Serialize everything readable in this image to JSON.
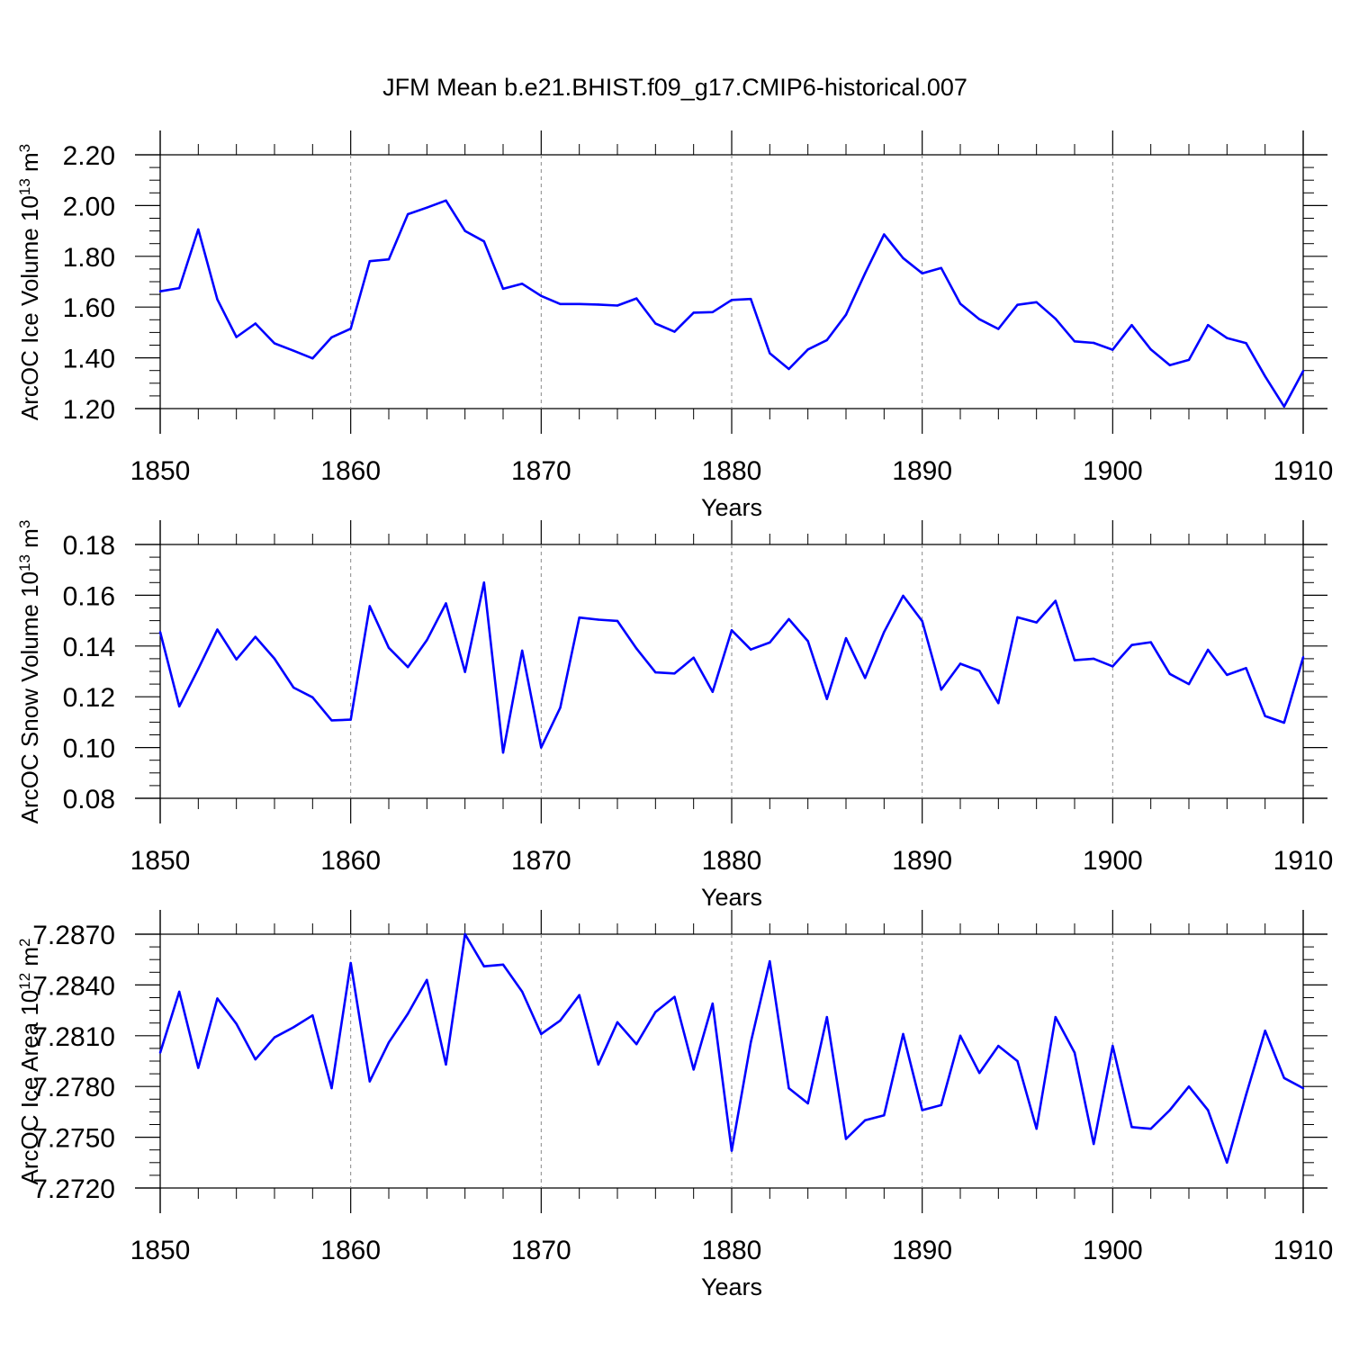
{
  "title": "JFM Mean b.e21.BHIST.f09_g17.CMIP6-historical.007",
  "chart_data": [
    {
      "type": "line",
      "name": "ice-volume",
      "ylabel": "ArcOC Ice Volume 10",
      "ylabel_exp": "13",
      "ylabel_unit": " m",
      "ylabel_unit_exp": "3",
      "xlabel": "Years",
      "xlim": [
        1850,
        1910
      ],
      "ylim": [
        1.2,
        2.2
      ],
      "xticks": [
        1850,
        1860,
        1870,
        1880,
        1890,
        1900,
        1910
      ],
      "xtick_labels": [
        "1850",
        "1860",
        "1870",
        "1880",
        "1890",
        "1900",
        "1910"
      ],
      "yticks": [
        1.2,
        1.4,
        1.6,
        1.8,
        2.0,
        2.2
      ],
      "ytick_labels": [
        "1.20",
        "1.40",
        "1.60",
        "1.80",
        "2.00",
        "2.20"
      ],
      "y_minor_step": 0.05,
      "line_color": "#0000ff",
      "x": [
        1850,
        1851,
        1852,
        1853,
        1854,
        1855,
        1856,
        1857,
        1858,
        1859,
        1860,
        1861,
        1862,
        1863,
        1864,
        1865,
        1866,
        1867,
        1868,
        1869,
        1870,
        1871,
        1872,
        1873,
        1874,
        1875,
        1876,
        1877,
        1878,
        1879,
        1880,
        1881,
        1882,
        1883,
        1884,
        1885,
        1886,
        1887,
        1888,
        1889,
        1890,
        1891,
        1892,
        1893,
        1894,
        1895,
        1896,
        1897,
        1898,
        1899,
        1900,
        1901,
        1902,
        1903,
        1904,
        1905,
        1906,
        1907,
        1908,
        1909,
        1910
      ],
      "values": [
        1.662,
        1.675,
        1.906,
        1.63,
        1.482,
        1.535,
        1.457,
        1.428,
        1.398,
        1.481,
        1.515,
        1.781,
        1.788,
        1.966,
        1.992,
        2.02,
        1.9,
        1.859,
        1.672,
        1.692,
        1.644,
        1.612,
        1.612,
        1.61,
        1.606,
        1.634,
        1.535,
        1.503,
        1.578,
        1.58,
        1.628,
        1.632,
        1.418,
        1.356,
        1.433,
        1.47,
        1.57,
        1.733,
        1.886,
        1.793,
        1.733,
        1.754,
        1.613,
        1.552,
        1.514,
        1.609,
        1.619,
        1.554,
        1.465,
        1.459,
        1.432,
        1.529,
        1.433,
        1.371,
        1.392,
        1.529,
        1.478,
        1.458,
        1.327,
        1.208,
        1.348
      ]
    },
    {
      "type": "line",
      "name": "snow-volume",
      "ylabel": "ArcOC Snow Volume 10",
      "ylabel_exp": "13",
      "ylabel_unit": " m",
      "ylabel_unit_exp": "3",
      "xlabel": "Years",
      "xlim": [
        1850,
        1910
      ],
      "ylim": [
        0.08,
        0.18
      ],
      "xticks": [
        1850,
        1860,
        1870,
        1880,
        1890,
        1900,
        1910
      ],
      "xtick_labels": [
        "1850",
        "1860",
        "1870",
        "1880",
        "1890",
        "1900",
        "1910"
      ],
      "yticks": [
        0.08,
        0.1,
        0.12,
        0.14,
        0.16,
        0.18
      ],
      "ytick_labels": [
        "0.08",
        "0.10",
        "0.12",
        "0.14",
        "0.16",
        "0.18"
      ],
      "y_minor_step": 0.005,
      "line_color": "#0000ff",
      "x": [
        1850,
        1851,
        1852,
        1853,
        1854,
        1855,
        1856,
        1857,
        1858,
        1859,
        1860,
        1861,
        1862,
        1863,
        1864,
        1865,
        1866,
        1867,
        1868,
        1869,
        1870,
        1871,
        1872,
        1873,
        1874,
        1875,
        1876,
        1877,
        1878,
        1879,
        1880,
        1881,
        1882,
        1883,
        1884,
        1885,
        1886,
        1887,
        1888,
        1889,
        1890,
        1891,
        1892,
        1893,
        1894,
        1895,
        1896,
        1897,
        1898,
        1899,
        1900,
        1901,
        1902,
        1903,
        1904,
        1905,
        1906,
        1907,
        1908,
        1909,
        1910
      ],
      "values": [
        0.1455,
        0.1162,
        0.131,
        0.1465,
        0.1347,
        0.1436,
        0.135,
        0.1236,
        0.1198,
        0.1107,
        0.111,
        0.1557,
        0.1393,
        0.1317,
        0.1423,
        0.1568,
        0.1298,
        0.165,
        0.098,
        0.1382,
        0.1,
        0.1157,
        0.1512,
        0.1504,
        0.1499,
        0.139,
        0.1296,
        0.1292,
        0.1354,
        0.1219,
        0.1462,
        0.1386,
        0.1414,
        0.1506,
        0.1419,
        0.1191,
        0.1431,
        0.1274,
        0.1455,
        0.1598,
        0.1498,
        0.1228,
        0.133,
        0.1302,
        0.1175,
        0.1513,
        0.1493,
        0.1578,
        0.1344,
        0.135,
        0.132,
        0.1404,
        0.1415,
        0.129,
        0.125,
        0.1385,
        0.1286,
        0.1313,
        0.1124,
        0.1098,
        0.1356
      ]
    },
    {
      "type": "line",
      "name": "ice-area",
      "ylabel": "ArcOC Ice Area 10",
      "ylabel_exp": "12",
      "ylabel_unit": " m",
      "ylabel_unit_exp": "2",
      "xlabel": "Years",
      "xlim": [
        1850,
        1910
      ],
      "ylim": [
        7.272,
        7.287
      ],
      "xticks": [
        1850,
        1860,
        1870,
        1880,
        1890,
        1900,
        1910
      ],
      "xtick_labels": [
        "1850",
        "1860",
        "1870",
        "1880",
        "1890",
        "1900",
        "1910"
      ],
      "yticks": [
        7.272,
        7.275,
        7.278,
        7.281,
        7.284,
        7.287
      ],
      "ytick_labels": [
        "7.2720",
        "7.2750",
        "7.2780",
        "7.2810",
        "7.2840",
        "7.2870"
      ],
      "y_minor_step": 0.00075,
      "line_color": "#0000ff",
      "x": [
        1850,
        1851,
        1852,
        1853,
        1854,
        1855,
        1856,
        1857,
        1858,
        1859,
        1860,
        1861,
        1862,
        1863,
        1864,
        1865,
        1866,
        1867,
        1868,
        1869,
        1870,
        1871,
        1872,
        1873,
        1874,
        1875,
        1876,
        1877,
        1878,
        1879,
        1880,
        1881,
        1882,
        1883,
        1884,
        1885,
        1886,
        1887,
        1888,
        1889,
        1890,
        1891,
        1892,
        1893,
        1894,
        1895,
        1896,
        1897,
        1898,
        1899,
        1900,
        1901,
        1902,
        1903,
        1904,
        1905,
        1906,
        1907,
        1908,
        1909,
        1910
      ],
      "values": [
        7.28,
        7.2836,
        7.2791,
        7.2832,
        7.2817,
        7.2796,
        7.2809,
        7.2815,
        7.2822,
        7.2779,
        7.2853,
        7.2783,
        7.2806,
        7.2823,
        7.2843,
        7.2793,
        7.287,
        7.2851,
        7.2852,
        7.2836,
        7.2811,
        7.2819,
        7.2834,
        7.2793,
        7.2818,
        7.2805,
        7.2824,
        7.2833,
        7.279,
        7.2829,
        7.2742,
        7.2806,
        7.2854,
        7.2779,
        7.277,
        7.2821,
        7.2749,
        7.276,
        7.2763,
        7.2811,
        7.2766,
        7.2769,
        7.281,
        7.2788,
        7.2804,
        7.2795,
        7.2755,
        7.2821,
        7.28,
        7.2746,
        7.2804,
        7.2756,
        7.2755,
        7.2766,
        7.278,
        7.2766,
        7.2735,
        7.2775,
        7.2813,
        7.2785,
        7.2779
      ]
    }
  ]
}
